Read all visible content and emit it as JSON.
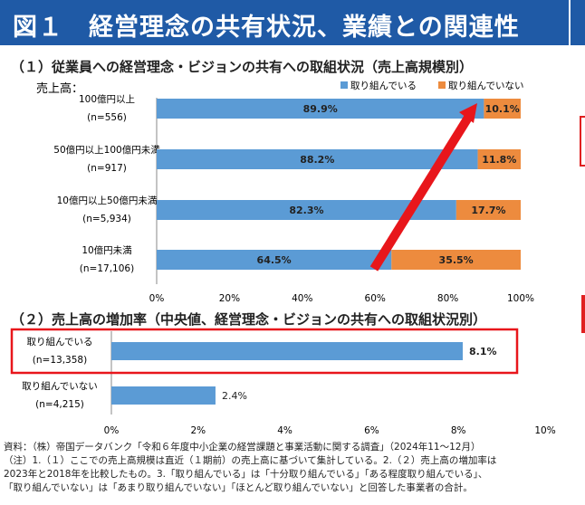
{
  "header": {
    "title": "図１　経営理念の共有状況、業績との関連性"
  },
  "chart_data": [
    {
      "type": "bar",
      "orientation": "horizontal",
      "stacked": true,
      "title": "（１）従業員への経営理念・ビジョンの共有への取組状況（売上高規模別）",
      "ylabel": "売上高：",
      "categories": [
        "100億円以上",
        "50億円以上100億円未満",
        "10億円以上50億円未満",
        "10億円未満"
      ],
      "category_counts": [
        "(n=556)",
        "(n=917)",
        "(n=5,934)",
        "(n=17,106)"
      ],
      "series": [
        {
          "name": "取り組んでいる",
          "color": "#5b9bd5",
          "values": [
            89.9,
            88.2,
            82.3,
            64.5
          ],
          "labels": [
            "89.9%",
            "88.2%",
            "82.3%",
            "64.5%"
          ]
        },
        {
          "name": "取り組んでいない",
          "color": "#ed8b3e",
          "values": [
            10.1,
            11.8,
            17.7,
            35.5
          ],
          "labels": [
            "10.1%",
            "11.8%",
            "17.7%",
            "35.5%"
          ]
        }
      ],
      "xlim": [
        0,
        100
      ],
      "xticks": [
        "0%",
        "20%",
        "40%",
        "60%",
        "80%",
        "100%"
      ],
      "legend": "top-right",
      "annotation": "red arrow rising from the 10億円未満 row to the 100億円以上 row"
    },
    {
      "type": "bar",
      "orientation": "horizontal",
      "title": "（２）売上高の増加率（中央値、経営理念・ビジョンの共有への取組状況別）",
      "categories": [
        "取り組んでいる",
        "取り組んでいない"
      ],
      "category_counts": [
        "(n=13,358)",
        "(n=4,215)"
      ],
      "values": [
        8.1,
        2.4
      ],
      "labels": [
        "8.1%",
        "2.4%"
      ],
      "color": "#5b9bd5",
      "xlim": [
        0,
        10
      ],
      "xticks": [
        "0%",
        "2%",
        "4%",
        "6%",
        "8%",
        "10%"
      ],
      "highlight": "取り組んでいる"
    }
  ],
  "notes": [
    "資料：（株）帝国データバンク「令和６年度中小企業の経営課題と事業活動に関する調査」（2024年11～12月）",
    "（注）1.（１）ここでの売上高規模は直近（１期前）の売上高に基づいて集計している。2.（２）売上高の増加率は",
    "2023年と2018年を比較したもの。3.「取り組んでいる」は「十分取り組んでいる」「ある程度取り組んでいる」、",
    "「取り組んでいない」は「あまり取り組んでいない」「ほとんど取り組んでいない」と回答した事業者の合計。"
  ]
}
